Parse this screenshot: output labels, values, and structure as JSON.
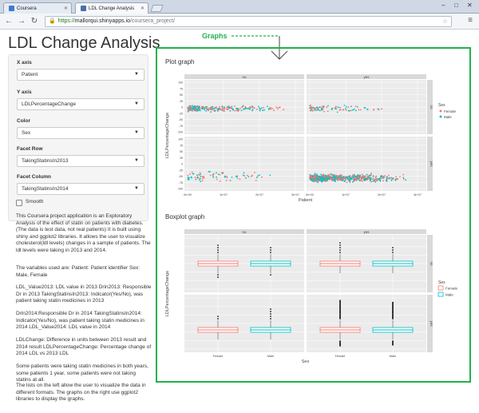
{
  "browser": {
    "tabs": [
      {
        "label": "Coursera",
        "active": false
      },
      {
        "label": "LDL Change Analysis",
        "active": true
      }
    ],
    "url_protocol": "https://",
    "url_host": "mallorqui.shinyapps.io",
    "url_path": "/coursera_project/"
  },
  "app": {
    "title": "LDL Change Analysis"
  },
  "controls": {
    "x_axis": {
      "label": "X axis",
      "value": "Patient"
    },
    "y_axis": {
      "label": "Y axis",
      "value": "LDLPercentageChange"
    },
    "color": {
      "label": "Color",
      "value": "Sex"
    },
    "facet_row": {
      "label": "Facet Row",
      "value": "TakingStatinsIn2013"
    },
    "facet_column": {
      "label": "Facet Column",
      "value": "TakingStatinsIn2014"
    },
    "smooth": {
      "label": "Smooth",
      "checked": false
    }
  },
  "description": [
    "This Coursera project application is an Exploratory Analysis of the effect of statin on patients with diabetes. (The data is test data, not real patients) It is built using shiny and ggplot2 libraries. It allows the user to visualize cholesterol(ldl levels) changes in a sample of patients. The ldl levels were taking in 2013 and 2014.",
    "The variables used are: Patient: Patient identifier Sex: Male, Female",
    "LDL_Value2013: LDL value in 2013 Drin2013: Responsible Dr in 2013 TakingStatinsIn2013: Indicator(Yes/No), was patient taking statin medicines in 2013",
    "Drin2014:Responsible Dr in 2014 TakingStatinsIn2014: Indicator(Yes/No), was patient taking statin medicines in 2014 LDL_Value2014: LDL value in 2014",
    "LDLChange: Difference in units between 2013 result and 2014 result LDLPercentageChange: Percentage change of 2014 LDL vs 2013 LDL",
    "Some patients were taking statin medicines in both years, some patients 1 year, some patients were not taking statins at all.",
    "The lists on the left allow the user to visualize the data in different formats. The graphs on the right use ggplot2 libraries to display the graphs."
  ],
  "annotation": {
    "label": "Graphs",
    "color": "#22b24c"
  },
  "plot_section": {
    "title": "Plot graph"
  },
  "boxplot_section": {
    "title": "Boxplot graph"
  },
  "chart_data": [
    {
      "type": "scatter",
      "title": "",
      "xlabel": "Patient",
      "ylabel": "LDLPercentageChange",
      "facet_columns": [
        "no",
        "yes"
      ],
      "facet_rows": [
        "no",
        "yes"
      ],
      "x_ticks": [
        "0e+00",
        "1e+07",
        "2e+07",
        "3e+07"
      ],
      "y_ticks": [
        "100",
        "75",
        "50",
        "25",
        "0",
        "-25",
        "-50",
        "-75",
        "-100"
      ],
      "legend": {
        "title": "Sex",
        "entries": [
          "Female",
          "Male"
        ],
        "position": "right"
      },
      "colors": {
        "Female": "#f8766d",
        "Male": "#00bfc4"
      },
      "panels": [
        {
          "row": "no",
          "col": "no",
          "y_center": 0,
          "density": "medium"
        },
        {
          "row": "no",
          "col": "yes",
          "y_center": 0,
          "density": "low"
        },
        {
          "row": "yes",
          "col": "no",
          "y_center": -50,
          "density": "low"
        },
        {
          "row": "yes",
          "col": "yes",
          "y_center": -50,
          "density": "high"
        }
      ]
    },
    {
      "type": "box",
      "title": "",
      "xlabel": "Sex",
      "ylabel": "LDLPercentageChange",
      "categories": [
        "Female",
        "Male"
      ],
      "facet_columns": [
        "no",
        "yes"
      ],
      "facet_rows": [
        "no",
        "yes"
      ],
      "legend": {
        "title": "Sex",
        "entries": [
          "Female",
          "Male"
        ],
        "position": "right"
      },
      "colors": {
        "Female": "#f8766d",
        "Male": "#00bfc4"
      }
    }
  ]
}
